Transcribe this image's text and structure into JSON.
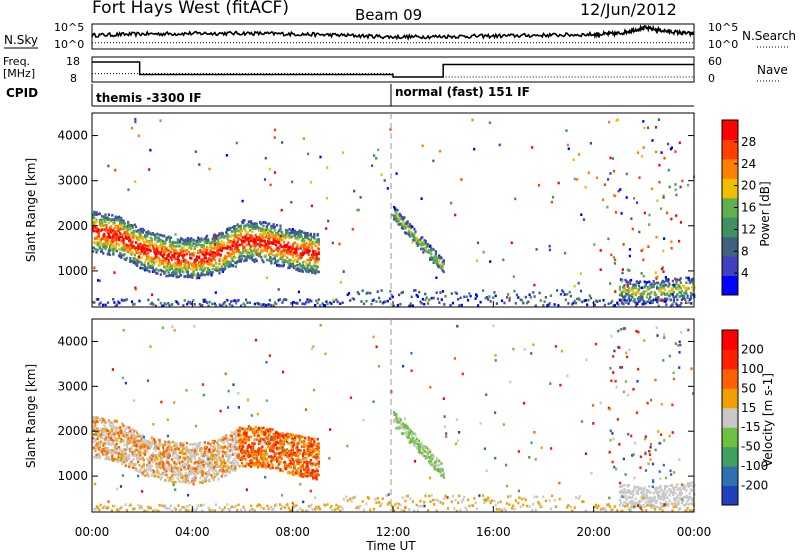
{
  "header": {
    "station": "Fort Hays West (fitACF)",
    "beam": "Beam 09",
    "date": "12/Jun/2012"
  },
  "noise_panel": {
    "left_label": "N.Sky",
    "right_label": "N.Search",
    "left_ticks": [
      "10^5",
      "10^0"
    ],
    "right_ticks": [
      "10^5",
      "10^0"
    ]
  },
  "freq_panel": {
    "left_label_line1": "Freq.",
    "left_label_line2": "[MHz]",
    "right_label": "Nave",
    "left_ticks": [
      "18",
      "8"
    ],
    "right_ticks": [
      "60",
      "0"
    ]
  },
  "cpid": {
    "label": "CPID",
    "modes": [
      {
        "name": "themis -3300 IF",
        "start_hour": 0,
        "end_hour": 12
      },
      {
        "name": "normal (fast) 151 IF",
        "start_hour": 12,
        "end_hour": 24
      }
    ]
  },
  "time_axis": {
    "label": "Time UT",
    "ticks": [
      "00:00",
      "04:00",
      "08:00",
      "12:00",
      "16:00",
      "20:00",
      "00:00"
    ]
  },
  "chart_data": [
    {
      "type": "line",
      "name": "noise",
      "x_range": [
        0,
        24
      ],
      "series": [
        {
          "name": "N.Sky",
          "x": [
            0,
            2,
            4,
            6,
            8,
            10,
            12,
            14,
            16,
            18,
            20,
            21,
            22,
            23,
            24
          ],
          "y_frac": [
            0.55,
            0.6,
            0.62,
            0.63,
            0.6,
            0.55,
            0.48,
            0.5,
            0.52,
            0.55,
            0.58,
            0.62,
            0.85,
            0.7,
            0.6
          ]
        },
        {
          "name": "N.Search",
          "style": "dotted",
          "x": [
            0,
            24
          ],
          "y_frac": [
            0.25,
            0.25
          ]
        }
      ]
    },
    {
      "type": "line",
      "name": "frequency",
      "left_ylim": [
        8,
        18
      ],
      "right_ylim": [
        0,
        60
      ],
      "series": [
        {
          "name": "Freq.",
          "x": [
            0,
            1.9,
            1.9,
            12,
            12,
            14,
            14,
            24
          ],
          "y": [
            16,
            16,
            11,
            11,
            10,
            10,
            15,
            15
          ]
        },
        {
          "name": "Nave",
          "style": "dotted",
          "x": [
            0,
            12,
            12,
            24
          ],
          "y_right": [
            20,
            20,
            12,
            12
          ]
        }
      ]
    },
    {
      "type": "heatmap",
      "name": "power",
      "xlabel": "",
      "ylabel": "Slant Range [km]",
      "xlim": [
        0,
        24
      ],
      "ylim": [
        200,
        4500
      ],
      "y_ticks": [
        1000,
        2000,
        3000,
        4000
      ],
      "colorbar": {
        "label": "Power [dB]",
        "ticks": [
          4,
          8,
          12,
          16,
          20,
          24,
          28
        ],
        "range": [
          0,
          32
        ],
        "colors": [
          "#0000ff",
          "#4040c0",
          "#406080",
          "#409060",
          "#60b050",
          "#f0c000",
          "#ff8000",
          "#ff4000",
          "#ff0000"
        ]
      },
      "features": [
        {
          "x": [
            0,
            9
          ],
          "range_center": [
            1900,
            1800,
            1500,
            1350,
            1300,
            1400,
            1700,
            1650,
            1500,
            1400
          ],
          "level": 24
        },
        {
          "x": [
            12,
            14
          ],
          "range_center": [
            2300,
            1900,
            1500,
            1100
          ],
          "level": 10
        },
        {
          "x": [
            21,
            24
          ],
          "range_center": [
            600,
            550,
            600,
            650
          ],
          "level": 14
        }
      ]
    },
    {
      "type": "heatmap",
      "name": "velocity",
      "xlabel": "Time UT",
      "ylabel": "Slant Range [km]",
      "xlim": [
        0,
        24
      ],
      "ylim": [
        200,
        4500
      ],
      "y_ticks": [
        1000,
        2000,
        3000,
        4000
      ],
      "colorbar": {
        "label": "Velocity [m s-1]",
        "ticks": [
          200,
          100,
          50,
          15,
          -15,
          -50,
          -100,
          -200
        ],
        "colors": [
          "#2040c0",
          "#3070b0",
          "#40a060",
          "#70c040",
          "#c8c8c8",
          "#f0a000",
          "#ff6000",
          "#ff2000",
          "#ff0000"
        ]
      }
    }
  ]
}
